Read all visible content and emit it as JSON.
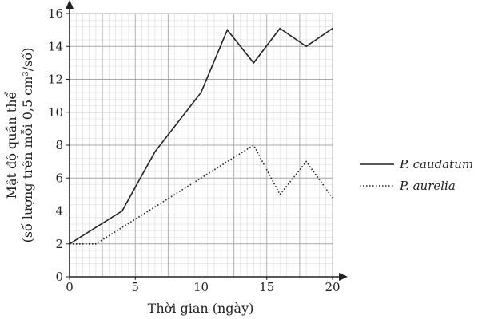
{
  "chart_data": {
    "type": "line",
    "xlabel": "Thời gian (ngày)",
    "ylabel_line1": "Mật độ quần thể",
    "ylabel_line2": "(số lượng trên mỗi 0,5 cm³/số)",
    "xlim": [
      0,
      20
    ],
    "ylim": [
      0,
      16
    ],
    "x_ticks": [
      0,
      5,
      10,
      15,
      20
    ],
    "y_ticks": [
      0,
      2,
      4,
      6,
      8,
      10,
      12,
      14,
      16
    ],
    "grid": true,
    "minor_grid": true,
    "legend_position": "right",
    "series": [
      {
        "name": "P. caudatum",
        "style": "solid",
        "color": "#222222",
        "points": [
          [
            0,
            2
          ],
          [
            4,
            4
          ],
          [
            6.5,
            7.6
          ],
          [
            10,
            11.2
          ],
          [
            12,
            15
          ],
          [
            14,
            13
          ],
          [
            16,
            15.1
          ],
          [
            18,
            14
          ],
          [
            20,
            15.1
          ]
        ]
      },
      {
        "name": "P. aurelia",
        "style": "dotted",
        "color": "#222222",
        "points": [
          [
            0,
            2
          ],
          [
            2,
            2
          ],
          [
            14,
            8
          ],
          [
            16,
            5
          ],
          [
            18,
            7
          ],
          [
            20,
            4.8
          ]
        ]
      }
    ]
  }
}
